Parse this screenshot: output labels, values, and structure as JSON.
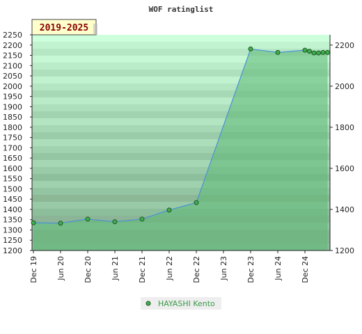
{
  "chart_data": {
    "type": "area",
    "title": "WOF ratinglist",
    "period_badge": "2019-2025",
    "x_tick_labels": [
      "Dec 19",
      "Jun 20",
      "Dec 20",
      "Jun 21",
      "Dec 21",
      "Jun 22",
      "Dec 22",
      "Jun 23",
      "Dec 23",
      "Jun 24",
      "Dec 24"
    ],
    "ylim": [
      1200,
      2250
    ],
    "left_ticks": [
      1200,
      1250,
      1300,
      1350,
      1400,
      1450,
      1500,
      1550,
      1600,
      1650,
      1700,
      1750,
      1800,
      1850,
      1900,
      1950,
      2000,
      2050,
      2100,
      2150,
      2200,
      2250
    ],
    "right_ticks": [
      1200,
      1400,
      1600,
      1800,
      2000,
      2200
    ],
    "grid": true,
    "legend_position": "bottom",
    "series": [
      {
        "name": "HAYASHI Kento",
        "color": "#3cb050",
        "points": [
          {
            "x": "2019-12",
            "y": 1335
          },
          {
            "x": "2020-06",
            "y": 1333
          },
          {
            "x": "2020-12",
            "y": 1353
          },
          {
            "x": "2021-06",
            "y": 1340
          },
          {
            "x": "2021-12",
            "y": 1353
          },
          {
            "x": "2022-06",
            "y": 1397
          },
          {
            "x": "2022-12",
            "y": 1433
          },
          {
            "x": "2023-12",
            "y": 2181
          },
          {
            "x": "2024-06",
            "y": 2164
          },
          {
            "x": "2024-12",
            "y": 2175
          },
          {
            "x": "2025-01",
            "y": 2170
          },
          {
            "x": "2025-02",
            "y": 2162
          },
          {
            "x": "2025-03",
            "y": 2162
          },
          {
            "x": "2025-04",
            "y": 2164
          },
          {
            "x": "2025-05",
            "y": 2164
          }
        ]
      }
    ]
  }
}
